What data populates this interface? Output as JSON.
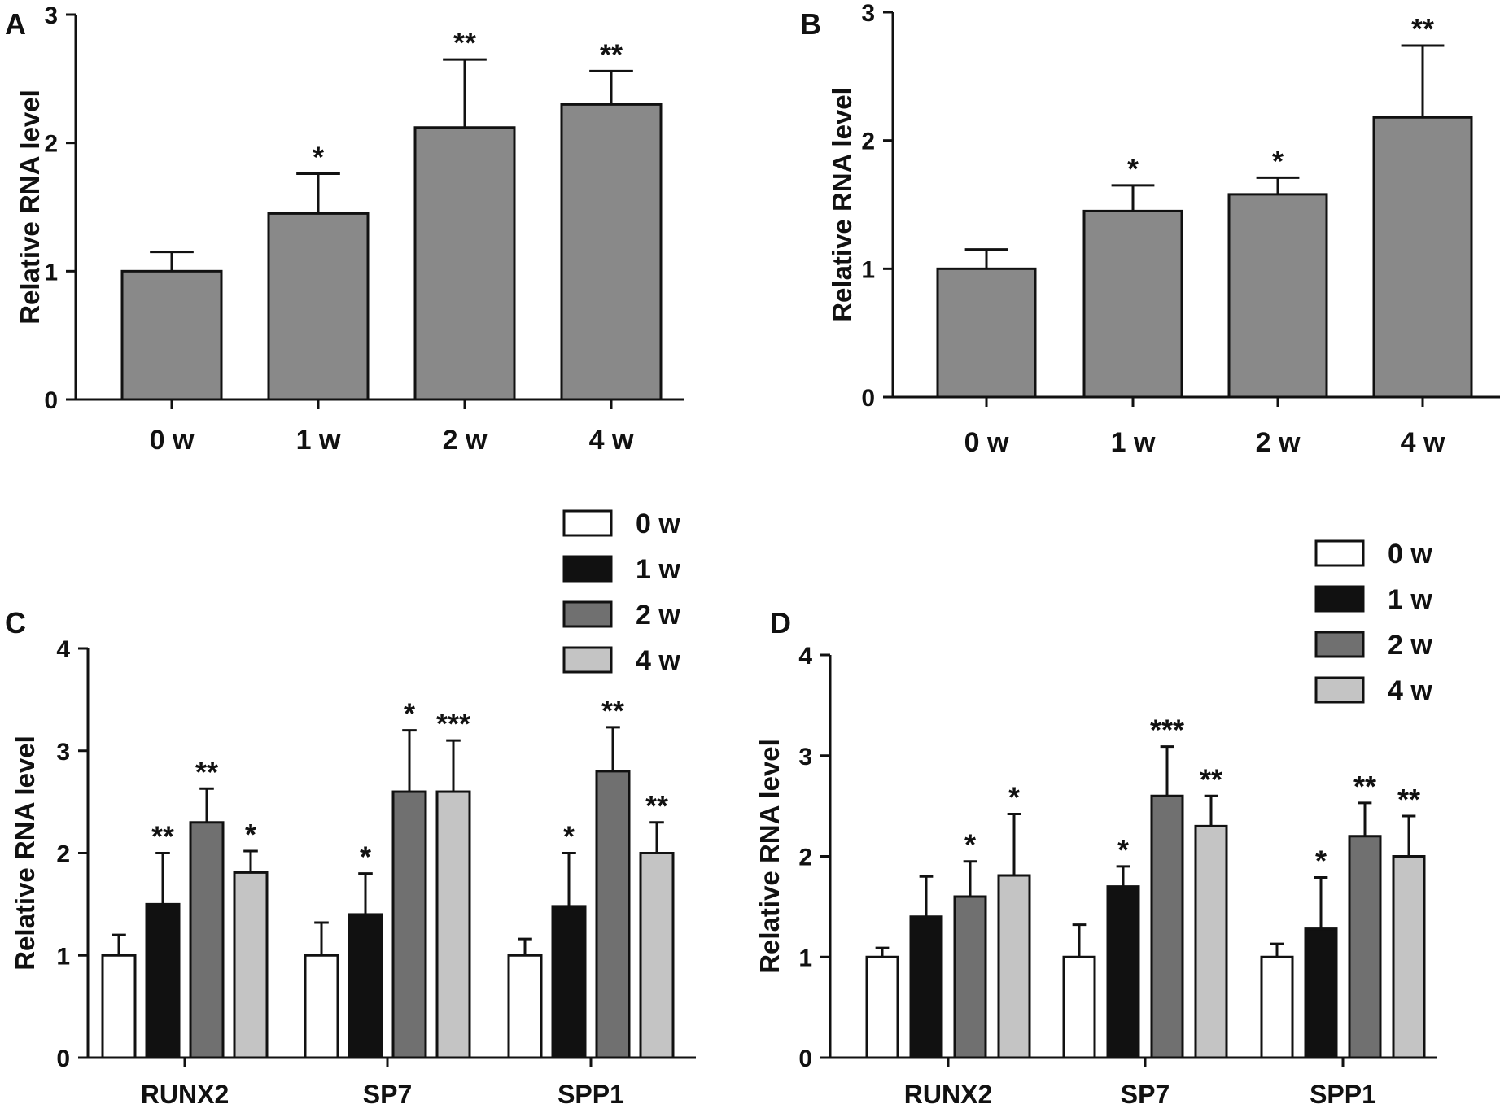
{
  "chart_data": [
    {
      "panel": "A",
      "type": "bar",
      "ylabel": "Relative RNA level",
      "ylim": [
        0,
        3
      ],
      "yticks": [
        0,
        1,
        2,
        3
      ],
      "categories": [
        "0 w",
        "1 w",
        "2 w",
        "4 w"
      ],
      "values": [
        1.0,
        1.45,
        2.12,
        2.3
      ],
      "errors": [
        0.15,
        0.31,
        0.53,
        0.26
      ],
      "significance": [
        "",
        "*",
        "**",
        "**"
      ],
      "bar_color": "#898989"
    },
    {
      "panel": "B",
      "type": "bar",
      "ylabel": "Relative RNA level",
      "ylim": [
        0,
        3
      ],
      "yticks": [
        0,
        1,
        2,
        3
      ],
      "categories": [
        "0 w",
        "1 w",
        "2 w",
        "4 w"
      ],
      "values": [
        1.0,
        1.45,
        1.58,
        2.18
      ],
      "errors": [
        0.15,
        0.2,
        0.13,
        0.56
      ],
      "significance": [
        "",
        "*",
        "*",
        "**"
      ],
      "bar_color": "#898989"
    },
    {
      "panel": "C",
      "type": "bar",
      "ylabel": "Relative RNA level",
      "ylim": [
        0,
        4
      ],
      "yticks": [
        0,
        1,
        2,
        3,
        4
      ],
      "categories": [
        "RUNX2",
        "SP7",
        "SPP1"
      ],
      "legend_position": "top-right",
      "series": [
        {
          "name": "0 w",
          "color": "#ffffff",
          "values": [
            1.0,
            1.0,
            1.0
          ],
          "errors": [
            0.2,
            0.32,
            0.16
          ],
          "significance": [
            "",
            "",
            ""
          ]
        },
        {
          "name": "1 w",
          "color": "#111111",
          "values": [
            1.5,
            1.4,
            1.48
          ],
          "errors": [
            0.5,
            0.4,
            0.52
          ],
          "significance": [
            "**",
            "*",
            "*"
          ]
        },
        {
          "name": "2 w",
          "color": "#707070",
          "values": [
            2.3,
            2.6,
            2.8
          ],
          "errors": [
            0.33,
            0.6,
            0.43
          ],
          "significance": [
            "**",
            "*",
            "**"
          ]
        },
        {
          "name": "4 w",
          "color": "#c4c4c4",
          "values": [
            1.81,
            2.6,
            2.0
          ],
          "errors": [
            0.21,
            0.5,
            0.3
          ],
          "significance": [
            "*",
            "***",
            "**"
          ]
        }
      ]
    },
    {
      "panel": "D",
      "type": "bar",
      "ylabel": "Relative RNA level",
      "ylim": [
        0,
        4
      ],
      "yticks": [
        0,
        1,
        2,
        3,
        4
      ],
      "categories": [
        "RUNX2",
        "SP7",
        "SPP1"
      ],
      "legend_position": "top-right",
      "series": [
        {
          "name": "0 w",
          "color": "#ffffff",
          "values": [
            1.0,
            1.0,
            1.0
          ],
          "errors": [
            0.09,
            0.32,
            0.13
          ],
          "significance": [
            "",
            "",
            ""
          ]
        },
        {
          "name": "1 w",
          "color": "#111111",
          "values": [
            1.4,
            1.7,
            1.28
          ],
          "errors": [
            0.4,
            0.2,
            0.51
          ],
          "significance": [
            "",
            "*",
            "*"
          ]
        },
        {
          "name": "2 w",
          "color": "#707070",
          "values": [
            1.6,
            2.6,
            2.2
          ],
          "errors": [
            0.35,
            0.49,
            0.33
          ],
          "significance": [
            "*",
            "***",
            "**"
          ]
        },
        {
          "name": "4 w",
          "color": "#c4c4c4",
          "values": [
            1.81,
            2.3,
            2.0
          ],
          "errors": [
            0.61,
            0.3,
            0.4
          ],
          "significance": [
            "*",
            "**",
            "**"
          ]
        }
      ]
    }
  ]
}
